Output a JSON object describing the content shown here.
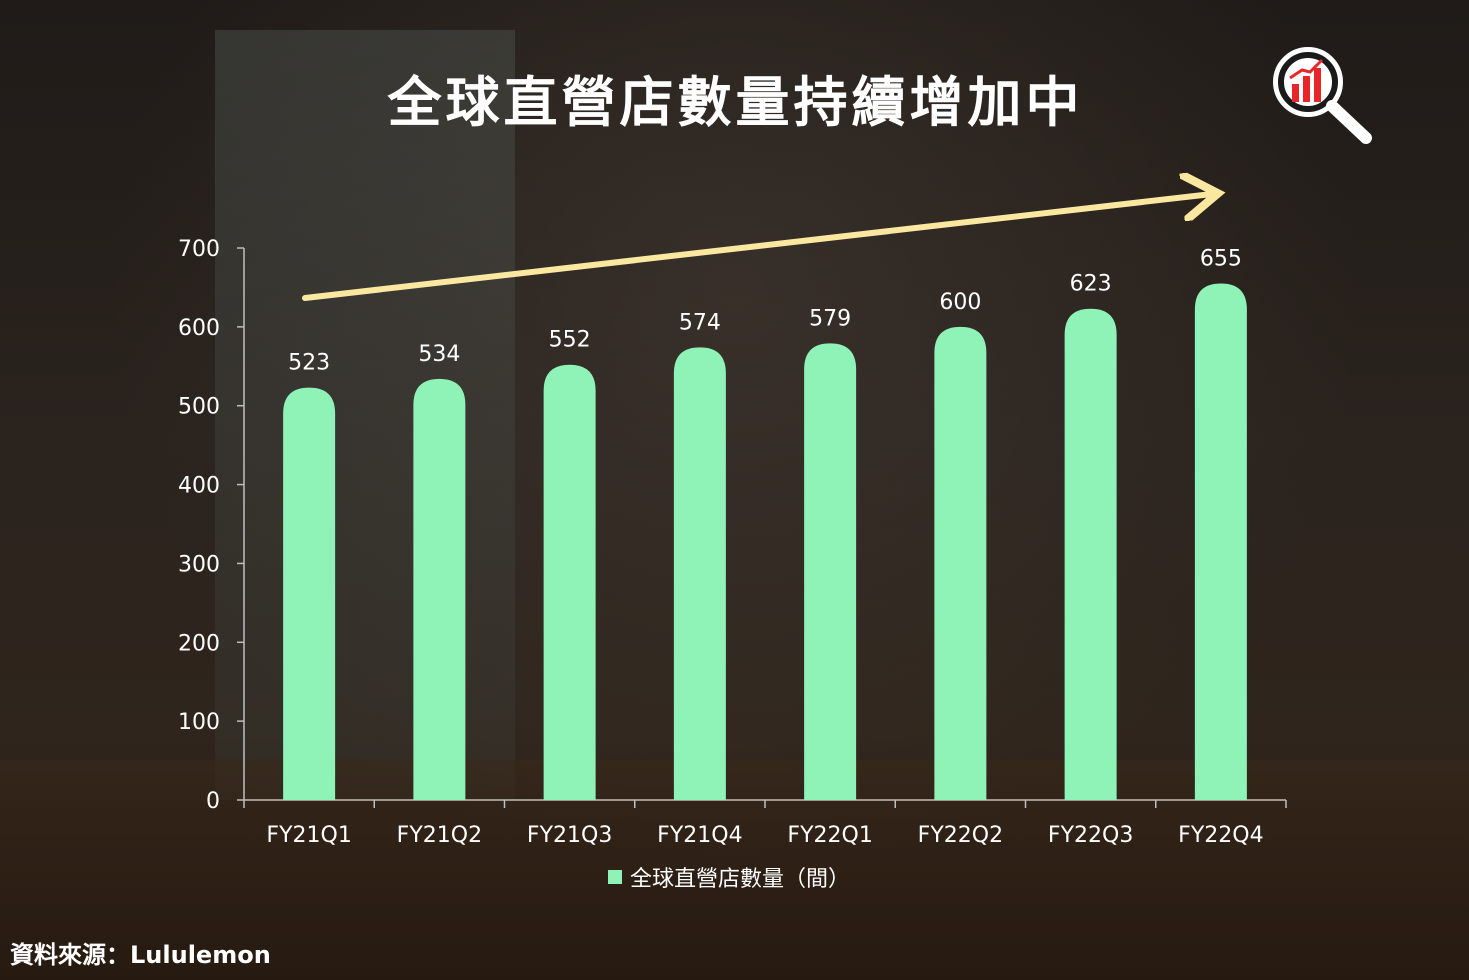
{
  "title": "全球直營店數量持續增加中",
  "source": "資料來源：Lululemon",
  "logo_icon": "magnifier-chart-icon",
  "colors": {
    "bar": "#8ff2b6",
    "arrow": "#fbe8a0",
    "logo_red": "#e8262a"
  },
  "chart_data": {
    "type": "bar",
    "categories": [
      "FY21Q1",
      "FY21Q2",
      "FY21Q3",
      "FY21Q4",
      "FY22Q1",
      "FY22Q2",
      "FY22Q3",
      "FY22Q4"
    ],
    "series": [
      {
        "name": "全球直營店數量（間）",
        "values": [
          523,
          534,
          552,
          574,
          579,
          600,
          623,
          655
        ]
      }
    ],
    "ylim": [
      0,
      700
    ],
    "yticks": [
      0,
      100,
      200,
      300,
      400,
      500,
      600,
      700
    ],
    "grid": false,
    "legend": "bottom",
    "trend_arrow": true
  }
}
